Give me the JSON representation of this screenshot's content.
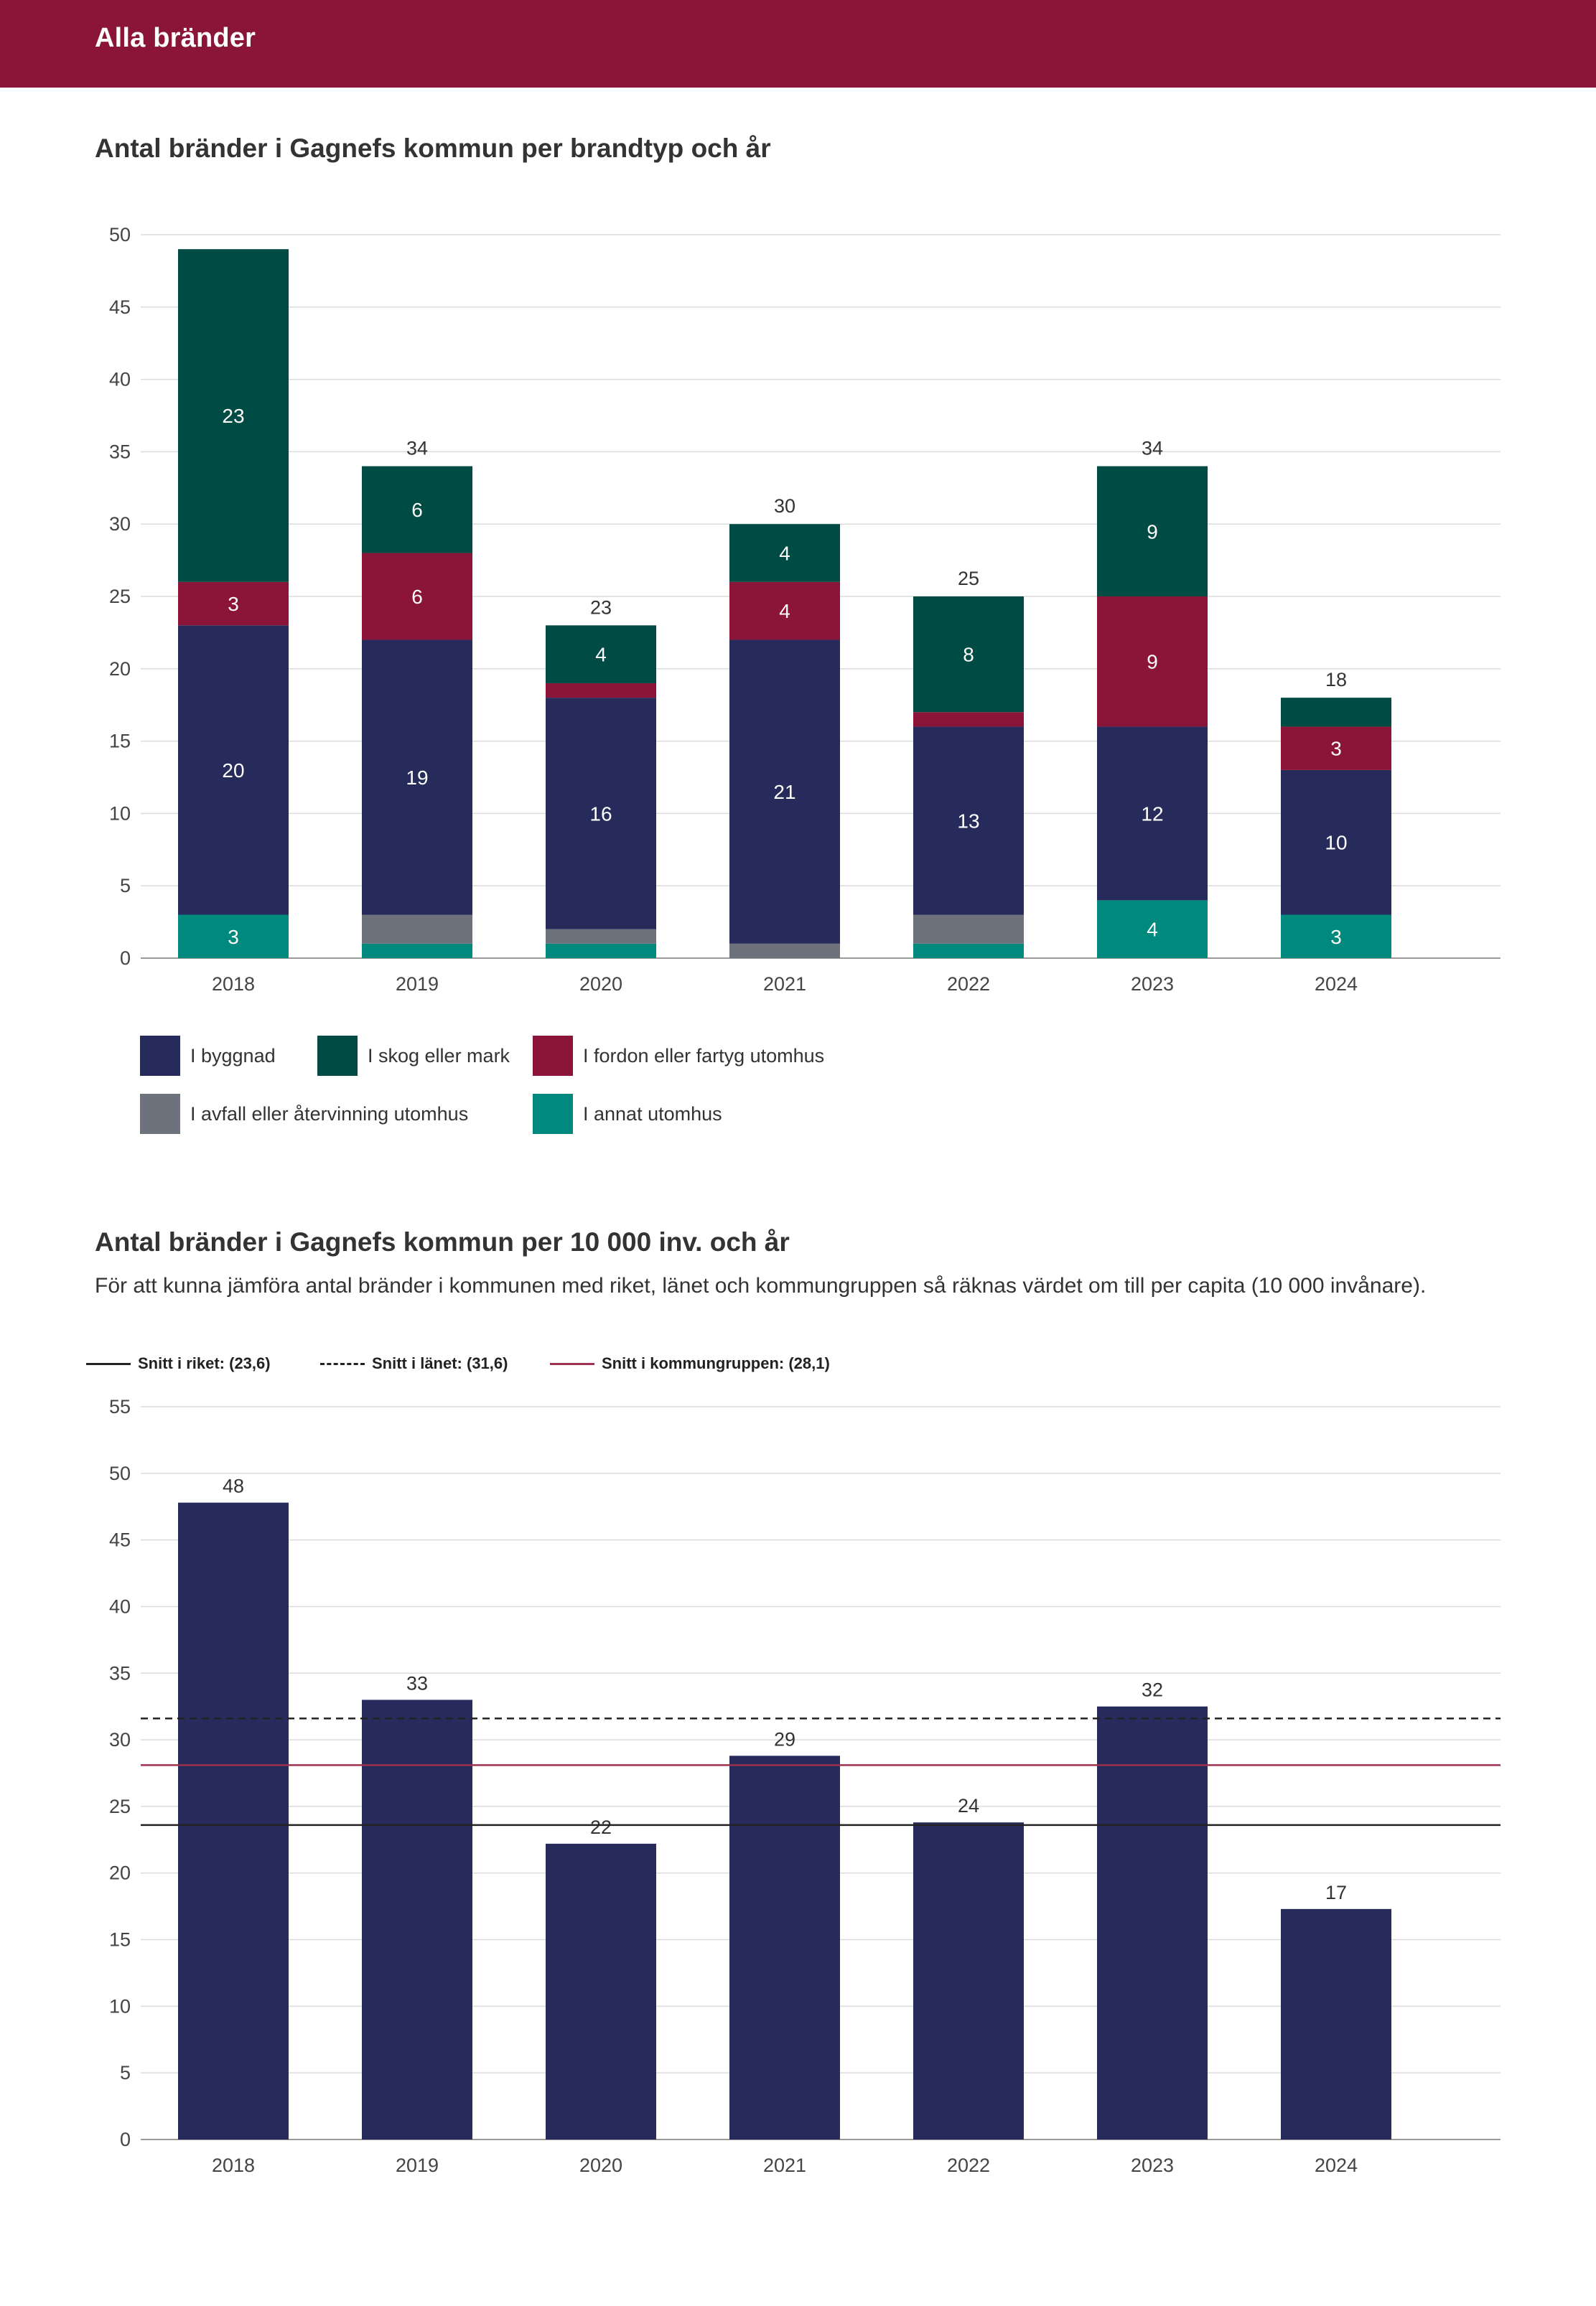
{
  "header": {
    "title": "Alla bränder"
  },
  "colors": {
    "header_bg": "#8b1538",
    "byggnad": "#262b5c",
    "skog": "#004c44",
    "fordon": "#8b1538",
    "avfall": "#6d727d",
    "annat": "#008a7d",
    "bar": "#262b5c",
    "riket": "#222222",
    "lanet": "#222222",
    "kommungruppen": "#a03050"
  },
  "chart1": {
    "title": "Antal bränder i Gagnefs kommun per brandtyp och år",
    "legend": [
      {
        "key": "byggnad",
        "label": "I byggnad"
      },
      {
        "key": "skog",
        "label": "I skog eller mark"
      },
      {
        "key": "fordon",
        "label": "I fordon eller fartyg utomhus"
      },
      {
        "key": "avfall",
        "label": "I avfall eller återvinning utomhus"
      },
      {
        "key": "annat",
        "label": "I annat utomhus"
      }
    ]
  },
  "chart2": {
    "title": "Antal bränder i Gagnefs kommun per 10 000 inv. och år",
    "description": "För att kunna jämföra antal bränder i kommunen med riket, länet och kommungruppen så räknas värdet om till per capita (10 000 invånare).",
    "references": [
      {
        "key": "riket",
        "label": "Snitt i riket: (23,6)",
        "style": "solid"
      },
      {
        "key": "lanet",
        "label": "Snitt i länet: (31,6)",
        "style": "dashed"
      },
      {
        "key": "kommungruppen",
        "label": "Snitt i kommungruppen: (28,1)",
        "style": "solid"
      }
    ]
  },
  "chart_data": [
    {
      "type": "bar",
      "stacked": true,
      "title": "Antal bränder i Gagnefs kommun per brandtyp och år",
      "categories": [
        "2018",
        "2019",
        "2020",
        "2021",
        "2022",
        "2023",
        "2024"
      ],
      "series": [
        {
          "key": "annat",
          "name": "I annat utomhus",
          "values": [
            3,
            1,
            1,
            0,
            1,
            4,
            3
          ],
          "labels": [
            "3",
            "",
            "",
            "",
            "",
            "4",
            "3"
          ]
        },
        {
          "key": "avfall",
          "name": "I avfall eller återvinning utomhus",
          "values": [
            0,
            2,
            1,
            1,
            2,
            0,
            0
          ],
          "labels": [
            "",
            "",
            "",
            "",
            "",
            "",
            ""
          ]
        },
        {
          "key": "byggnad",
          "name": "I byggnad",
          "values": [
            20,
            19,
            16,
            21,
            13,
            12,
            10
          ],
          "labels": [
            "20",
            "19",
            "16",
            "21",
            "13",
            "12",
            "10"
          ]
        },
        {
          "key": "fordon",
          "name": "I fordon eller fartyg utomhus",
          "values": [
            3,
            6,
            1,
            4,
            1,
            9,
            3
          ],
          "labels": [
            "3",
            "6",
            "",
            "4",
            "",
            "9",
            "3"
          ]
        },
        {
          "key": "skog",
          "name": "I skog eller mark",
          "values": [
            23,
            6,
            4,
            4,
            8,
            9,
            2
          ],
          "labels": [
            "23",
            "6",
            "4",
            "4",
            "8",
            "9",
            ""
          ]
        }
      ],
      "totals": [
        "",
        "34",
        "23",
        "30",
        "25",
        "34",
        "18"
      ],
      "ylim": [
        0,
        50
      ],
      "yticks": [
        0,
        5,
        10,
        15,
        20,
        25,
        30,
        35,
        40,
        45,
        50
      ],
      "grid": true
    },
    {
      "type": "bar",
      "title": "Antal bränder i Gagnefs kommun per 10 000 inv. och år",
      "categories": [
        "2018",
        "2019",
        "2020",
        "2021",
        "2022",
        "2023",
        "2024"
      ],
      "values": [
        47.8,
        33.0,
        22.2,
        28.8,
        23.8,
        32.5,
        17.3
      ],
      "labels": [
        "48",
        "33",
        "22",
        "29",
        "24",
        "32",
        "17"
      ],
      "reference_lines": [
        {
          "key": "riket",
          "value": 23.6,
          "style": "solid"
        },
        {
          "key": "lanet",
          "value": 31.6,
          "style": "dashed"
        },
        {
          "key": "kommungruppen",
          "value": 28.1,
          "style": "solid"
        }
      ],
      "ylim": [
        0,
        55
      ],
      "yticks": [
        0,
        5,
        10,
        15,
        20,
        25,
        30,
        35,
        40,
        45,
        50,
        55
      ],
      "grid": true
    }
  ]
}
